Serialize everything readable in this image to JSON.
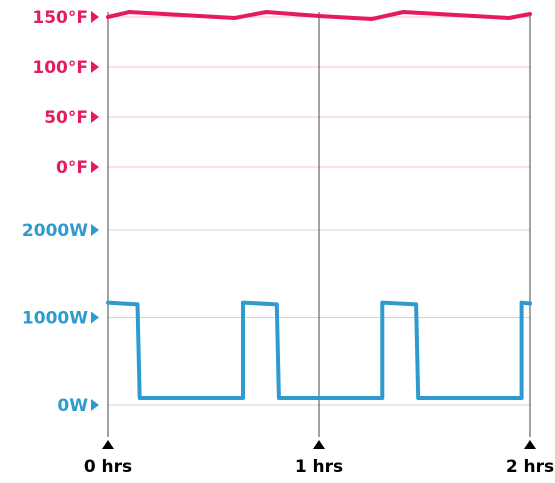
{
  "chart_data": {
    "type": "line",
    "colors": {
      "temperature": "#e41d5a",
      "power": "#2d9bd0",
      "axis": "#444444",
      "text": "#000000"
    },
    "temperature_axis": {
      "ticks": [
        {
          "value": 150,
          "label": "150°F"
        },
        {
          "value": 100,
          "label": "100°F"
        },
        {
          "value": 50,
          "label": "50°F"
        },
        {
          "value": 0,
          "label": "0°F"
        }
      ]
    },
    "power_axis": {
      "ticks": [
        {
          "value": 2000,
          "label": "2000W"
        },
        {
          "value": 1000,
          "label": "1000W"
        },
        {
          "value": 0,
          "label": "0W"
        }
      ]
    },
    "time_axis": {
      "unit": "hrs",
      "ticks": [
        {
          "value": 0,
          "label": "0 hrs"
        },
        {
          "value": 1,
          "label": "1 hrs"
        },
        {
          "value": 2,
          "label": "2 hrs"
        }
      ]
    },
    "series": [
      {
        "axis": "temperature",
        "x": [
          0,
          0.1,
          0.6,
          0.75,
          1.0,
          1.25,
          1.4,
          1.9,
          2.0
        ],
        "y": [
          150,
          155,
          149,
          155,
          151,
          148,
          155,
          149,
          153
        ]
      },
      {
        "axis": "power",
        "x": [
          0,
          0.14,
          0.15,
          0.64,
          0.64,
          0.8,
          0.81,
          1.3,
          1.3,
          1.46,
          1.47,
          1.96,
          1.96,
          2.0
        ],
        "y": [
          1170,
          1150,
          80,
          80,
          1170,
          1150,
          80,
          80,
          1170,
          1150,
          80,
          80,
          1170,
          1160
        ]
      }
    ]
  }
}
